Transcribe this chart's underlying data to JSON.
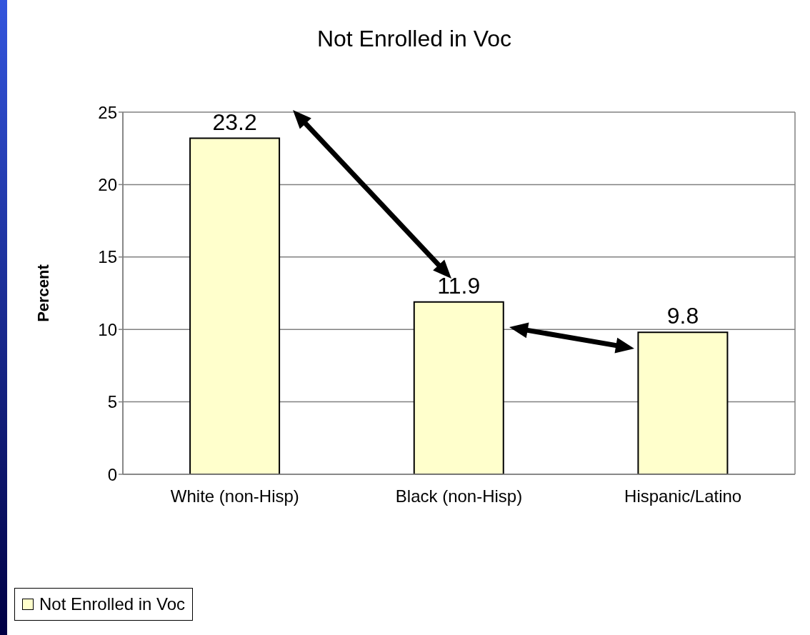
{
  "chart_data": {
    "type": "bar",
    "title": "Not Enrolled in Voc",
    "ylabel": "Percent",
    "categories": [
      "White (non-Hisp)",
      "Black (non-Hisp)",
      "Hispanic/Latino"
    ],
    "series": [
      {
        "name": "Not Enrolled in Voc",
        "color": "#ffffcc",
        "values": [
          23.2,
          11.9,
          9.8
        ]
      }
    ],
    "ylim": [
      0,
      25
    ],
    "yticks": [
      0,
      5,
      10,
      15,
      20,
      25
    ],
    "grid": "y",
    "legend": "bottom",
    "data_labels": true
  }
}
